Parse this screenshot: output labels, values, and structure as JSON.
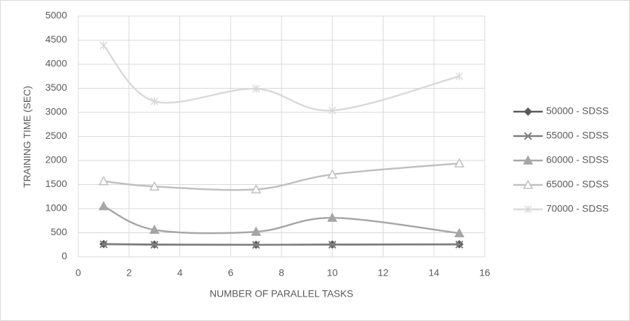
{
  "chart_data": {
    "type": "line",
    "x_label": "NUMBER OF PARALLEL TASKS",
    "y_label": "TRAINING TIME (SEC)",
    "x": [
      1,
      3,
      7,
      10,
      15
    ],
    "series": [
      {
        "name": "50000 - SDSS",
        "color": "#595959",
        "marker": "diamond",
        "values": [
          265,
          255,
          250,
          255,
          260
        ]
      },
      {
        "name": "55000 - SDSS",
        "color": "#7f7f7f",
        "marker": "x",
        "values": [
          260,
          250,
          248,
          252,
          255
        ]
      },
      {
        "name": "60000 - SDSS",
        "color": "#a6a6a6",
        "marker": "triangle",
        "values": [
          1050,
          560,
          520,
          810,
          490
        ]
      },
      {
        "name": "65000 - SDSS",
        "color": "#bfbfbf",
        "marker": "open-triangle",
        "values": [
          1570,
          1460,
          1400,
          1710,
          1940
        ]
      },
      {
        "name": "70000 - SDSS",
        "color": "#d9d9d9",
        "marker": "asterisk",
        "values": [
          4390,
          3230,
          3490,
          3040,
          3750
        ]
      }
    ],
    "xlim": [
      0,
      16
    ],
    "xticks": [
      0,
      2,
      4,
      6,
      8,
      10,
      12,
      14,
      16
    ],
    "ylim": [
      0,
      5000
    ],
    "yticks": [
      0,
      500,
      1000,
      1500,
      2000,
      2500,
      3000,
      3500,
      4000,
      4500,
      5000
    ],
    "grid": true,
    "smooth": true,
    "legend": "right"
  }
}
